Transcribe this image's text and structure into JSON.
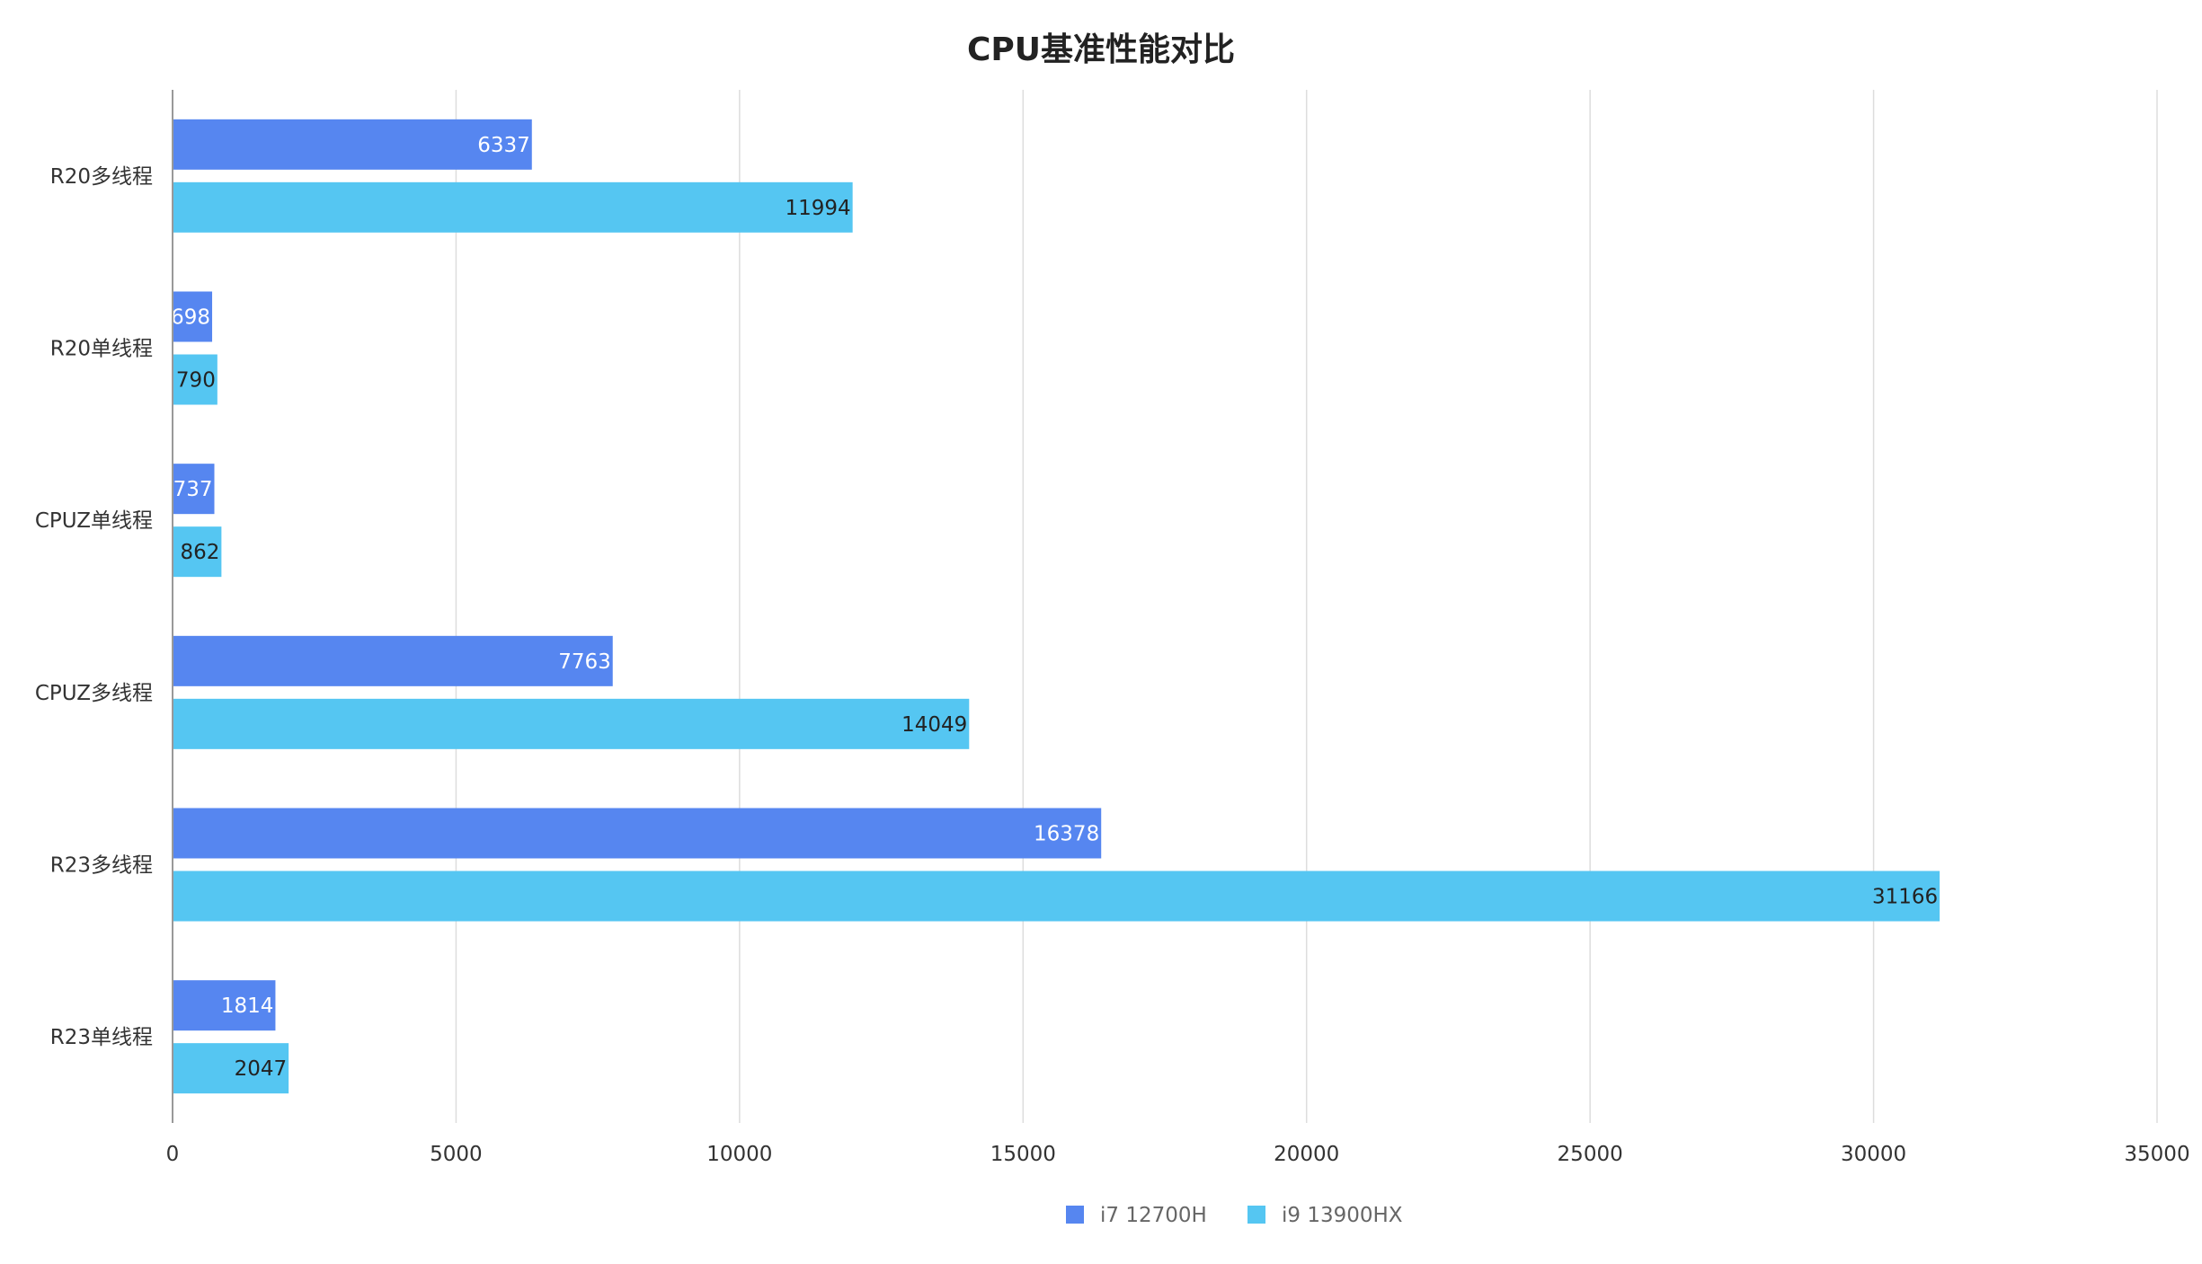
{
  "chart_data": {
    "type": "bar",
    "orientation": "horizontal",
    "title": "CPU基准性能对比",
    "categories": [
      "R20多线程",
      "R20单线程",
      "CPUZ单线程",
      "CPUZ多线程",
      "R23多线程",
      "R23单线程"
    ],
    "series": [
      {
        "name": "i7 12700H",
        "color": "#5686F0",
        "label_color": "#ffffff",
        "values": [
          6337,
          698,
          737,
          7763,
          16378,
          1814
        ]
      },
      {
        "name": "i9 13900HX",
        "color": "#55C6F2",
        "label_color": "#222222",
        "values": [
          11994,
          790,
          862,
          14049,
          31166,
          2047
        ]
      }
    ],
    "xlim": [
      0,
      35000
    ],
    "xticks": [
      0,
      5000,
      10000,
      15000,
      20000,
      25000,
      30000,
      35000
    ],
    "grid": true,
    "legend_position": "bottom-center",
    "xlabel": "",
    "ylabel": ""
  }
}
